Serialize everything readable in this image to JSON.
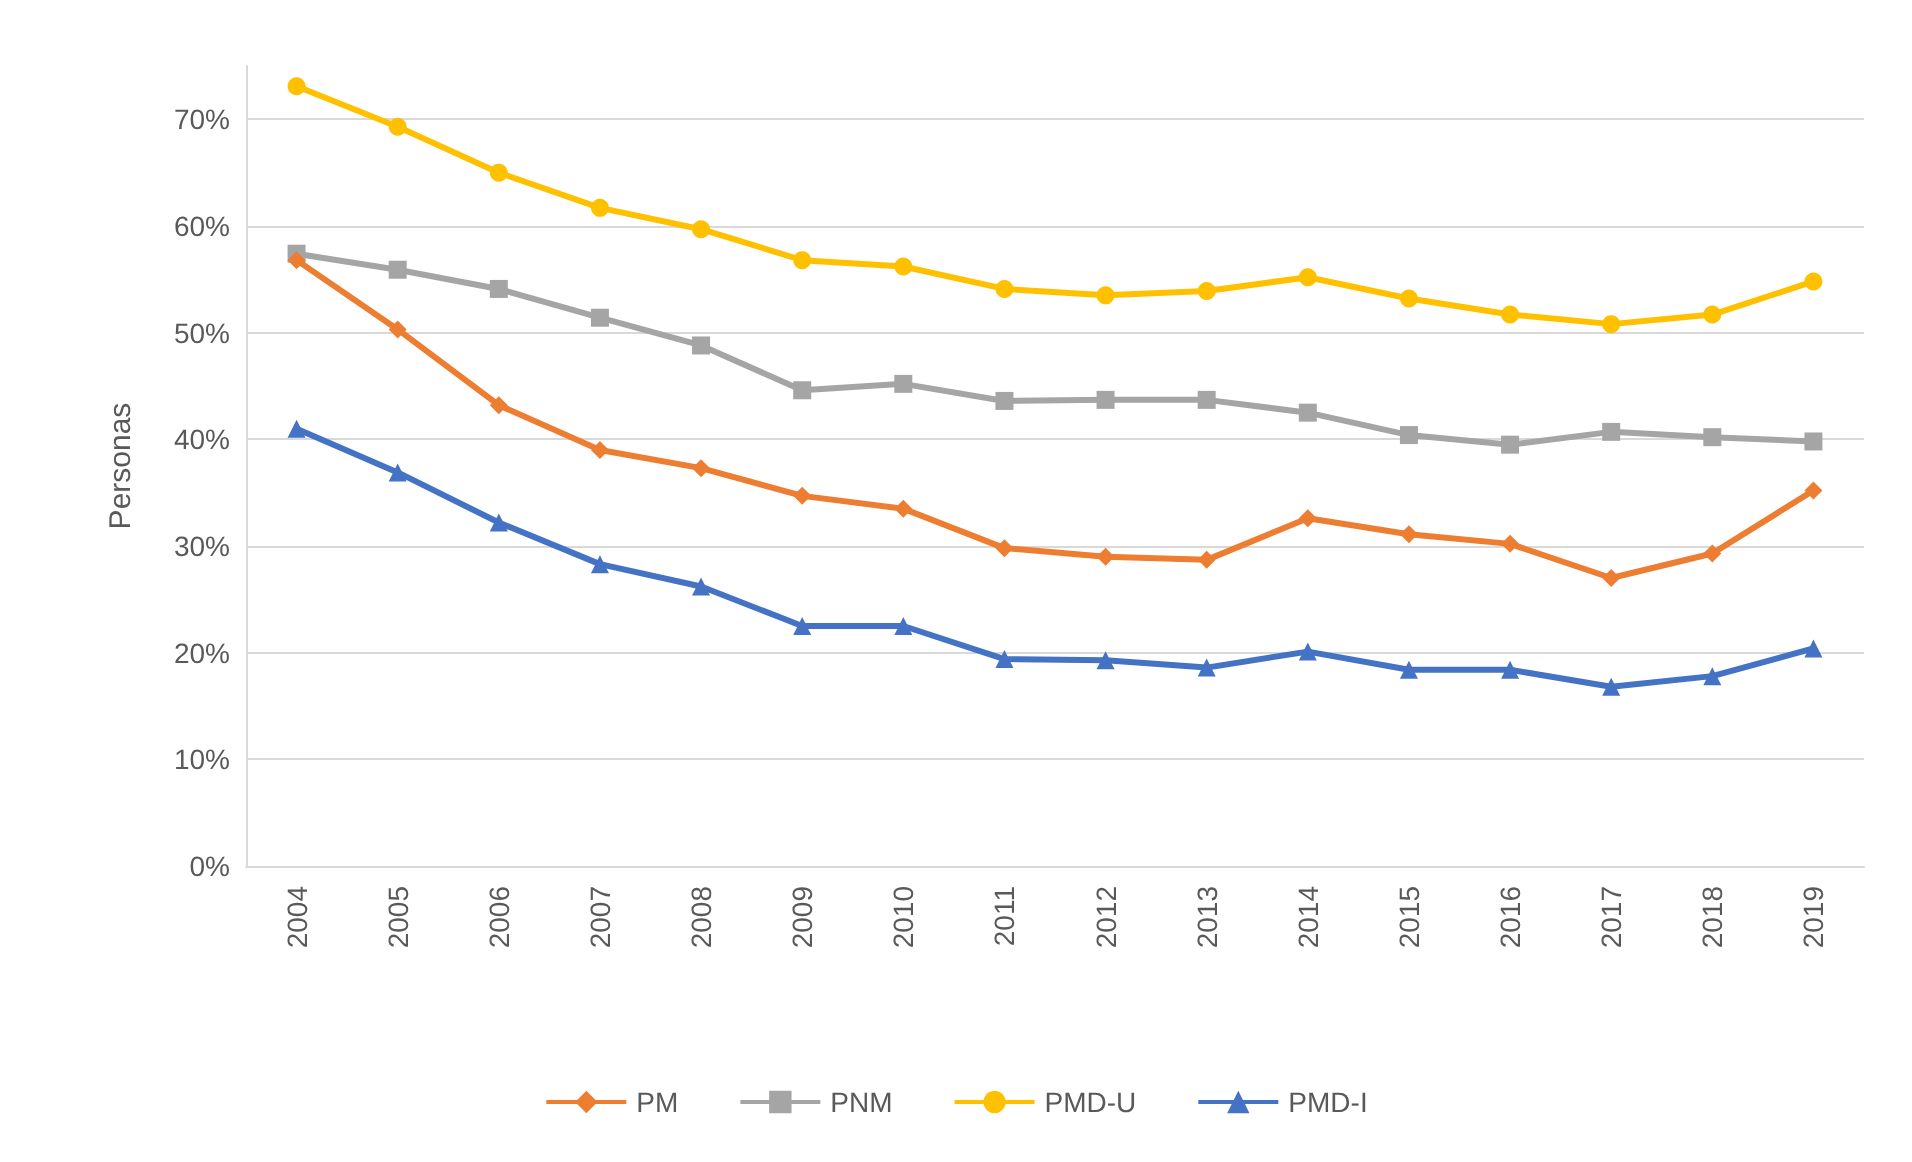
{
  "chart_data": {
    "type": "line",
    "ylabel": "Personas",
    "categories": [
      "2004",
      "2005",
      "2006",
      "2007",
      "2008",
      "2009",
      "2010",
      "2011",
      "2012",
      "2013",
      "2014",
      "2015",
      "2016",
      "2017",
      "2018",
      "2019"
    ],
    "series": [
      {
        "name": "PM",
        "color": "#ed7d31",
        "marker": "diamond",
        "values": [
          56.8,
          50.3,
          43.2,
          39.0,
          37.3,
          34.7,
          33.5,
          29.8,
          29.0,
          28.7,
          32.6,
          31.1,
          30.2,
          27.0,
          29.3,
          35.2
        ]
      },
      {
        "name": "PNM",
        "color": "#a5a5a5",
        "marker": "square",
        "values": [
          57.4,
          55.9,
          54.1,
          51.4,
          48.8,
          44.6,
          45.2,
          43.6,
          43.7,
          43.7,
          42.5,
          40.4,
          39.5,
          40.7,
          40.2,
          39.8
        ]
      },
      {
        "name": "PMD-U",
        "color": "#ffc000",
        "marker": "circle",
        "values": [
          73.1,
          69.3,
          65.0,
          61.7,
          59.7,
          56.8,
          56.2,
          54.1,
          53.5,
          53.9,
          55.2,
          53.2,
          51.7,
          50.8,
          51.7,
          54.8
        ]
      },
      {
        "name": "PMD-I",
        "color": "#4472c4",
        "marker": "triangle",
        "values": [
          41.0,
          36.9,
          32.2,
          28.3,
          26.2,
          22.5,
          22.5,
          19.4,
          19.3,
          18.6,
          20.1,
          18.4,
          18.4,
          16.8,
          17.8,
          20.4
        ]
      }
    ],
    "ylim": [
      0,
      75
    ],
    "yticks": [
      {
        "value": 0,
        "label": "0%"
      },
      {
        "value": 10,
        "label": "10%"
      },
      {
        "value": 20,
        "label": "20%"
      },
      {
        "value": 30,
        "label": "30%"
      },
      {
        "value": 40,
        "label": "40%"
      },
      {
        "value": 50,
        "label": "50%"
      },
      {
        "value": 60,
        "label": "60%"
      },
      {
        "value": 70,
        "label": "70%"
      }
    ],
    "grid": "y",
    "legend": "bottom"
  }
}
